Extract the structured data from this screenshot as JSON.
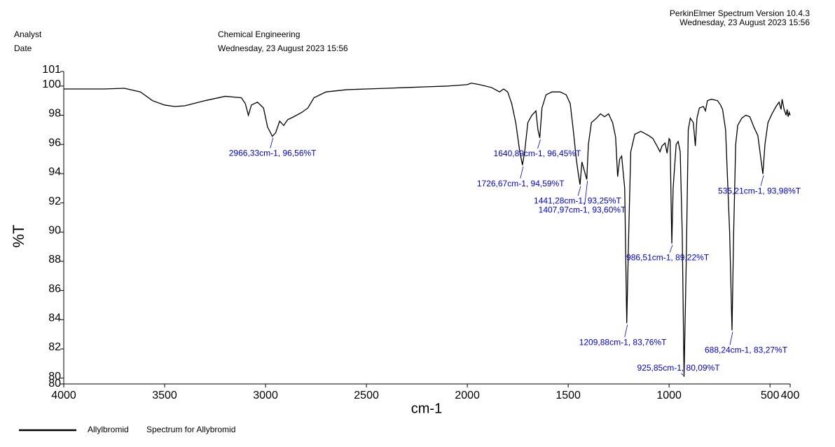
{
  "header": {
    "software": "PerkinElmer Spectrum Version 10.4.3",
    "timestamp": "Wednesday, 23 August 2023 15:56"
  },
  "fields": [
    {
      "label": "Analyst",
      "value": "Chemical Engineering"
    },
    {
      "label": "Date",
      "value": "Wednesday, 23 August 2023 15:56"
    }
  ],
  "chart_data": {
    "type": "line",
    "x_label": "cm-1",
    "y_label": "%T",
    "xlim": [
      4000,
      400
    ],
    "xticks": [
      4000,
      3500,
      3000,
      2500,
      2000,
      1500,
      1000,
      500,
      400
    ],
    "ylim": [
      79.6,
      101
    ],
    "yticks": [
      101,
      100,
      98,
      96,
      94,
      92,
      90,
      88,
      86,
      84,
      82,
      80,
      {
        "value": 79.6,
        "label": "80"
      }
    ],
    "x": [
      4000,
      3800,
      3700,
      3620,
      3560,
      3500,
      3450,
      3400,
      3300,
      3200,
      3120,
      3100,
      3085,
      3070,
      3040,
      3010,
      2990,
      2966.33,
      2950,
      2930,
      2910,
      2890,
      2860,
      2820,
      2790,
      2760,
      2700,
      2600,
      2500,
      2400,
      2300,
      2200,
      2100,
      2000,
      1980,
      1940,
      1880,
      1840,
      1820,
      1800,
      1780,
      1760,
      1740,
      1726.67,
      1715,
      1700,
      1680,
      1660,
      1650,
      1640.89,
      1630,
      1610,
      1580,
      1540,
      1510,
      1490,
      1475,
      1460,
      1450,
      1441.28,
      1432,
      1420,
      1407.97,
      1400,
      1385,
      1360,
      1340,
      1320,
      1300,
      1280,
      1265,
      1255,
      1245,
      1235,
      1220,
      1209.88,
      1200,
      1190,
      1170,
      1140,
      1100,
      1080,
      1060,
      1045,
      1035,
      1020,
      1010,
      1000,
      995,
      990,
      986.51,
      980,
      965,
      955,
      945,
      935,
      925.85,
      915,
      905,
      895,
      880,
      870,
      862,
      850,
      830,
      820,
      810,
      790,
      760,
      745,
      735,
      720,
      700,
      688.24,
      680,
      670,
      660,
      640,
      620,
      600,
      580,
      560,
      545,
      535.21,
      525,
      510,
      490,
      470,
      455,
      445,
      440,
      430,
      425,
      420,
      415,
      410,
      405,
      400
    ],
    "series": [
      {
        "name": "Allylbromid",
        "description": "Spectrum for Allybromid",
        "color": "#000000",
        "values": [
          99.8,
          99.8,
          99.85,
          99.6,
          99.0,
          98.7,
          98.6,
          98.65,
          99.0,
          99.3,
          99.2,
          98.8,
          98.0,
          98.7,
          98.9,
          98.5,
          97.2,
          96.56,
          96.8,
          97.6,
          97.3,
          97.7,
          97.9,
          98.2,
          98.5,
          99.2,
          99.6,
          99.75,
          99.8,
          99.85,
          99.9,
          99.95,
          100.0,
          100.1,
          100.2,
          100.1,
          99.9,
          99.6,
          99.8,
          99.6,
          98.8,
          97.5,
          95.5,
          94.59,
          95.6,
          97.5,
          98.0,
          98.3,
          97.0,
          96.45,
          98.5,
          99.4,
          99.6,
          99.6,
          99.4,
          98.8,
          97.0,
          95.0,
          94.0,
          93.25,
          94.8,
          94.2,
          93.6,
          96.0,
          97.5,
          97.8,
          98.1,
          97.9,
          98.1,
          97.5,
          96.5,
          93.8,
          95.0,
          95.2,
          93.0,
          83.76,
          90.0,
          95.5,
          96.7,
          96.9,
          96.6,
          96.4,
          95.9,
          95.5,
          95.9,
          96.1,
          95.4,
          96.4,
          96.3,
          92.0,
          89.22,
          93.0,
          96.0,
          96.2,
          95.5,
          90.0,
          80.09,
          88.0,
          97.0,
          97.8,
          97.5,
          95.9,
          97.8,
          98.5,
          98.6,
          98.3,
          99.0,
          99.1,
          99.0,
          98.7,
          98.4,
          97.0,
          90.0,
          83.27,
          90.0,
          96.0,
          97.3,
          97.8,
          98.0,
          97.9,
          97.2,
          96.6,
          95.0,
          93.98,
          96.0,
          97.5,
          98.1,
          98.6,
          98.9,
          98.4,
          99.1,
          98.4,
          98.2,
          98.0,
          98.4,
          97.9,
          98.2,
          98.0
        ]
      }
    ],
    "annotation_color": "#0000cc",
    "annotations": [
      {
        "text": "2966,33cm-1, 96,56%T",
        "x": 2966.33,
        "y": 96.56
      },
      {
        "text": "1640,89cm-1, 96,45%T",
        "x": 1640.89,
        "y": 96.45
      },
      {
        "text": "1726,67cm-1, 94,59%T",
        "x": 1726.67,
        "y": 94.59
      },
      {
        "text": "1441,28cm-1, 93,25%T",
        "x": 1441.28,
        "y": 93.25
      },
      {
        "text": "1407,97cm-1, 93,60%T",
        "x": 1407.97,
        "y": 93.6
      },
      {
        "text": "986,51cm-1, 89,22%T",
        "x": 986.51,
        "y": 89.22
      },
      {
        "text": "1209,88cm-1, 83,76%T",
        "x": 1209.88,
        "y": 83.76
      },
      {
        "text": "925,85cm-1, 80,09%T",
        "x": 925.85,
        "y": 80.09
      },
      {
        "text": "688,24cm-1, 83,27%T",
        "x": 688.24,
        "y": 83.27
      },
      {
        "text": "535,21cm-1, 93,98%T",
        "x": 535.21,
        "y": 93.98
      }
    ]
  }
}
